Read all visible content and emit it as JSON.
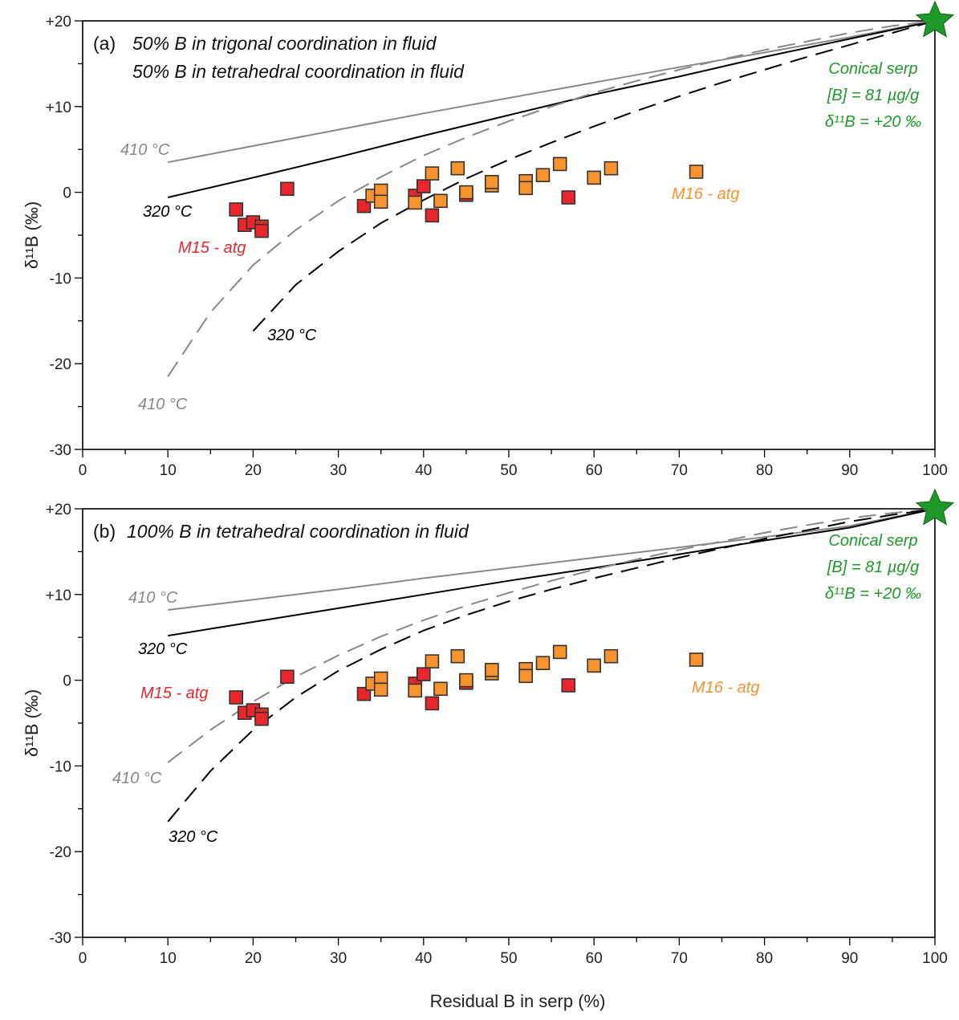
{
  "colors": {
    "curve_410": "#888888",
    "curve_320": "#000000",
    "m15": "#e8262b",
    "m16": "#f7922d",
    "source": "#1f9a2a",
    "marker_edge": "#333333"
  },
  "shared": {
    "xlabel": "Residual B in serp (%)",
    "ylabel": "δ¹¹B (‰)",
    "xticks": [
      "0",
      "10",
      "20",
      "30",
      "40",
      "50",
      "60",
      "70",
      "80",
      "90",
      "100"
    ],
    "yticks": [
      "+20",
      "+10",
      "0",
      "-10",
      "-20",
      "-30"
    ]
  },
  "chart_data": [
    {
      "type": "line",
      "panel_label": "(a)",
      "text_lines": [
        "50% B in trigonal coordination in fluid",
        "50% B in tetrahedral coordination in fluid"
      ],
      "xlim": [
        0,
        100
      ],
      "ylim": [
        -30,
        20
      ],
      "grid": false,
      "source_point": {
        "x": 100,
        "y": 20,
        "marker": "star",
        "labels": [
          "Conical serp",
          "[B] = 81 µg/g",
          "δ¹¹B = +20 ‰"
        ]
      },
      "series": [
        {
          "style": "solid",
          "color": "curve_410",
          "label": "410 °C",
          "x": [
            10,
            20,
            30,
            40,
            50,
            60,
            70,
            80,
            90,
            100
          ],
          "y": [
            3.5,
            5.4,
            7.3,
            9.2,
            11.0,
            12.8,
            14.6,
            16.3,
            18.1,
            20.0
          ]
        },
        {
          "style": "solid",
          "color": "curve_320",
          "label": "320 °C",
          "x": [
            10,
            20,
            30,
            40,
            50,
            60,
            70,
            80,
            90,
            100
          ],
          "y": [
            -0.6,
            1.7,
            4.1,
            6.6,
            9.0,
            11.4,
            13.5,
            15.8,
            17.9,
            20.0
          ]
        },
        {
          "style": "dashed",
          "color": "curve_410",
          "label": "410 °C",
          "x": [
            10,
            15,
            20,
            25,
            30,
            35,
            40,
            45,
            50,
            55,
            60,
            65,
            70,
            75,
            80,
            85,
            90,
            95,
            100
          ],
          "y": [
            -21.5,
            -14.0,
            -8.5,
            -4.4,
            -1.0,
            1.8,
            4.3,
            6.4,
            8.3,
            10.0,
            11.6,
            13.0,
            14.3,
            15.5,
            16.6,
            17.6,
            18.6,
            19.4,
            20.0
          ]
        },
        {
          "style": "dashed",
          "color": "curve_320",
          "label": "320 °C",
          "x": [
            20,
            25,
            30,
            35,
            40,
            45,
            50,
            55,
            60,
            65,
            70,
            75,
            80,
            85,
            90,
            95,
            100
          ],
          "y": [
            -16.2,
            -10.8,
            -6.9,
            -3.6,
            -0.9,
            1.6,
            3.8,
            5.8,
            7.7,
            9.5,
            11.2,
            12.8,
            14.3,
            15.8,
            17.2,
            18.6,
            20.0
          ]
        }
      ],
      "groups": [
        {
          "name": "M15 - atg",
          "color": "m15",
          "points": [
            [
              18,
              -2.0
            ],
            [
              19,
              -3.8
            ],
            [
              20,
              -3.5
            ],
            [
              21,
              -4.0
            ],
            [
              21,
              -4.5
            ],
            [
              24,
              0.4
            ],
            [
              33,
              -1.6
            ],
            [
              39,
              -0.4
            ],
            [
              40,
              0.7
            ],
            [
              41,
              -2.7
            ],
            [
              45,
              -0.3
            ],
            [
              57,
              -0.6
            ]
          ]
        },
        {
          "name": "M16 - atg",
          "color": "m16",
          "points": [
            [
              34,
              -0.4
            ],
            [
              35,
              0.2
            ],
            [
              35,
              -1.1
            ],
            [
              39,
              -1.2
            ],
            [
              41,
              2.2
            ],
            [
              42,
              -1.0
            ],
            [
              44,
              2.8
            ],
            [
              45,
              0.0
            ],
            [
              48,
              0.8
            ],
            [
              48,
              1.2
            ],
            [
              52,
              1.3
            ],
            [
              52,
              0.5
            ],
            [
              54,
              2.0
            ],
            [
              56,
              3.3
            ],
            [
              60,
              1.7
            ],
            [
              62,
              2.8
            ],
            [
              72,
              2.4
            ]
          ]
        }
      ]
    },
    {
      "type": "line",
      "panel_label": "(b)",
      "text_lines": [
        "100% B in tetrahedral coordination in fluid"
      ],
      "xlim": [
        0,
        100
      ],
      "ylim": [
        -30,
        20
      ],
      "grid": false,
      "source_point": {
        "x": 100,
        "y": 20,
        "marker": "star",
        "labels": [
          "Conical serp",
          "[B] = 81 µg/g",
          "δ¹¹B = +20 ‰"
        ]
      },
      "series": [
        {
          "style": "solid",
          "color": "curve_410",
          "label": "410 °C",
          "x": [
            10,
            20,
            30,
            40,
            50,
            60,
            70,
            80,
            90,
            100
          ],
          "y": [
            8.2,
            9.4,
            10.6,
            11.9,
            13.1,
            14.3,
            15.5,
            16.7,
            18.0,
            20.0
          ]
        },
        {
          "style": "solid",
          "color": "curve_320",
          "label": "320 °C",
          "x": [
            10,
            20,
            30,
            40,
            50,
            60,
            70,
            80,
            90,
            100
          ],
          "y": [
            5.2,
            6.8,
            8.4,
            10.0,
            11.6,
            13.1,
            14.7,
            16.3,
            17.8,
            20.0
          ]
        },
        {
          "style": "dashed",
          "color": "curve_410",
          "label": "410 °C",
          "x": [
            10,
            15,
            20,
            25,
            30,
            35,
            40,
            45,
            50,
            55,
            60,
            65,
            70,
            75,
            80,
            85,
            90,
            95,
            100
          ],
          "y": [
            -9.6,
            -5.8,
            -2.5,
            0.4,
            2.9,
            5.1,
            7.0,
            8.7,
            10.2,
            11.6,
            12.9,
            14.1,
            15.2,
            16.2,
            17.2,
            18.1,
            18.9,
            19.5,
            20.0
          ]
        },
        {
          "style": "dashed",
          "color": "curve_320",
          "label": "320 °C",
          "x": [
            10,
            15,
            20,
            25,
            30,
            35,
            40,
            45,
            50,
            55,
            60,
            65,
            70,
            75,
            80,
            85,
            90,
            95,
            100
          ],
          "y": [
            -16.5,
            -10.6,
            -5.8,
            -2.0,
            1.1,
            3.6,
            5.8,
            7.6,
            9.2,
            10.6,
            11.9,
            13.1,
            14.3,
            15.4,
            16.5,
            17.5,
            18.5,
            19.3,
            20.0
          ]
        }
      ],
      "groups": [
        {
          "name": "M15 - atg",
          "color": "m15",
          "points": [
            [
              18,
              -2.0
            ],
            [
              19,
              -3.8
            ],
            [
              20,
              -3.5
            ],
            [
              21,
              -4.0
            ],
            [
              21,
              -4.5
            ],
            [
              24,
              0.4
            ],
            [
              33,
              -1.6
            ],
            [
              39,
              -0.4
            ],
            [
              40,
              0.7
            ],
            [
              41,
              -2.7
            ],
            [
              45,
              -0.3
            ],
            [
              57,
              -0.6
            ]
          ]
        },
        {
          "name": "M16 - atg",
          "color": "m16",
          "points": [
            [
              34,
              -0.4
            ],
            [
              35,
              0.2
            ],
            [
              35,
              -1.1
            ],
            [
              39,
              -1.2
            ],
            [
              41,
              2.2
            ],
            [
              42,
              -1.0
            ],
            [
              44,
              2.8
            ],
            [
              45,
              0.0
            ],
            [
              48,
              0.8
            ],
            [
              48,
              1.2
            ],
            [
              52,
              1.3
            ],
            [
              52,
              0.5
            ],
            [
              54,
              2.0
            ],
            [
              56,
              3.3
            ],
            [
              60,
              1.7
            ],
            [
              62,
              2.8
            ],
            [
              72,
              2.4
            ]
          ]
        }
      ]
    }
  ]
}
